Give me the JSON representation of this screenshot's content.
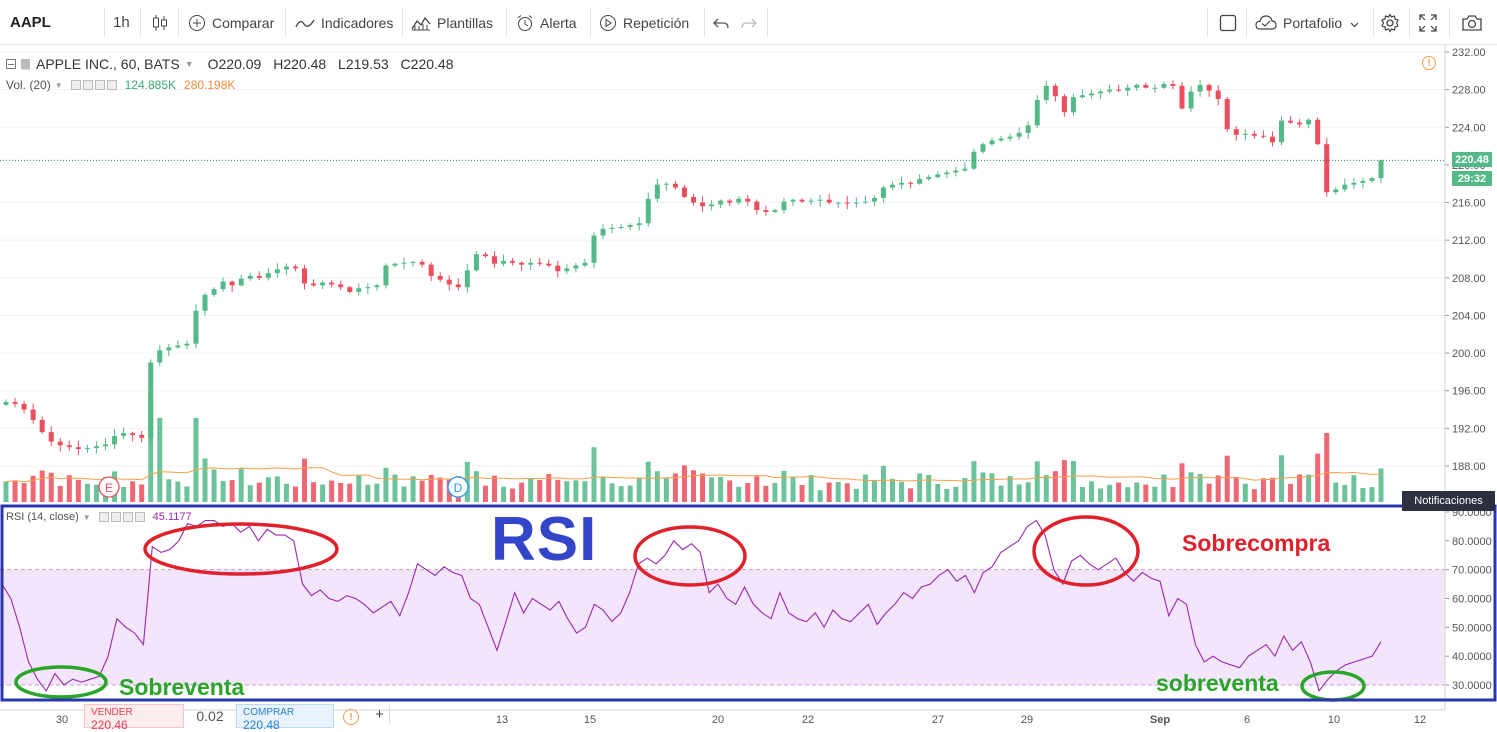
{
  "toolbar": {
    "symbol": "AAPL",
    "interval": "1h",
    "compare": "Comparar",
    "indicators": "Indicadores",
    "templates": "Plantillas",
    "alert": "Alerta",
    "replay": "Repetición",
    "portfolio": "Portafolio"
  },
  "legend": {
    "title": "APPLE INC., 60, BATS",
    "open": "O220.09",
    "high": "H220.48",
    "low": "L219.53",
    "close": "C220.48"
  },
  "volume_legend": {
    "label": "Vol. (20)",
    "value1": "124.885K",
    "value2": "280.198K"
  },
  "rsi_legend": {
    "label": "RSI (14, close)",
    "value": "45.1177"
  },
  "price_tag": {
    "price": "220.48",
    "countdown": "29:32"
  },
  "notifications": "Notificaciones",
  "markers": {
    "earnings": "E",
    "dividend": "D"
  },
  "annotations": {
    "rsi_title": "RSI",
    "overbought": "Sobrecompra",
    "oversold_left": "Sobreventa",
    "oversold_right": "sobreventa"
  },
  "trade": {
    "sell_label": "VENDER",
    "sell_price": "220.46",
    "spread": "0.02",
    "buy_label": "COMPRAR",
    "buy_price": "220.48"
  },
  "colors": {
    "up": "#53b987",
    "down": "#eb4d5c",
    "rsi_line": "#9c27b0",
    "rsi_band": "#f3e5fb",
    "annot_red": "#e0202a",
    "annot_green": "#2aa52a",
    "annot_blue": "#3346c9"
  },
  "chart_data": [
    {
      "type": "candlestick",
      "title": "APPLE INC., 60, BATS",
      "y_ticks": [
        "232.00",
        "228.00",
        "224.00",
        "220.00",
        "216.00",
        "212.00",
        "208.00",
        "204.00",
        "200.00",
        "196.00",
        "192.00",
        "188.00"
      ],
      "x_ticks": [
        "30",
        "13",
        "15",
        "20",
        "22",
        "27",
        "29",
        "Sep",
        "6",
        "10",
        "12"
      ],
      "ylim": [
        186,
        232.5
      ],
      "close_path": [
        194.8,
        194.6,
        194.0,
        192.9,
        191.6,
        190.6,
        190.2,
        190.0,
        189.8,
        189.9,
        190.1,
        190.3,
        191.2,
        191.5,
        191.3,
        191.0,
        199.0,
        200.3,
        200.6,
        200.8,
        201.0,
        204.5,
        206.2,
        206.8,
        207.6,
        207.2,
        207.9,
        208.2,
        208.0,
        208.5,
        208.9,
        209.2,
        209.0,
        207.4,
        207.2,
        207.5,
        207.3,
        207.0,
        206.5,
        206.9,
        207.0,
        207.2,
        209.3,
        209.5,
        209.6,
        209.7,
        209.4,
        208.2,
        207.8,
        207.3,
        207.0,
        208.8,
        210.5,
        210.3,
        209.5,
        209.8,
        209.6,
        209.4,
        209.6,
        209.5,
        209.3,
        208.7,
        209.0,
        209.3,
        209.6,
        212.5,
        213.2,
        213.3,
        213.4,
        213.6,
        213.8,
        216.4,
        217.9,
        218.0,
        217.6,
        216.6,
        216.0,
        215.6,
        215.8,
        216.2,
        216.0,
        216.4,
        216.1,
        215.2,
        215.0,
        215.2,
        216.1,
        216.3,
        216.1,
        216.2,
        216.3,
        216.0,
        216.0,
        215.9,
        216.0,
        216.1,
        216.5,
        217.6,
        217.9,
        218.1,
        218.0,
        218.5,
        218.7,
        219.0,
        219.2,
        219.4,
        219.6,
        221.4,
        222.2,
        222.6,
        222.8,
        223.0,
        223.4,
        224.2,
        226.9,
        228.4,
        227.3,
        225.6,
        227.2,
        227.4,
        227.6,
        227.8,
        228.0,
        227.9,
        228.2,
        228.5,
        228.2,
        228.2,
        228.6,
        228.4,
        226.0,
        227.8,
        228.5,
        227.9,
        227.0,
        223.8,
        223.2,
        223.3,
        223.1,
        223.0,
        222.4,
        224.7,
        224.5,
        224.3,
        224.8,
        222.2,
        217.1,
        217.4,
        217.9,
        218.1,
        218.3,
        218.6,
        220.48
      ],
      "volume_ylim": [
        0,
        130
      ]
    },
    {
      "type": "line",
      "title": "RSI (14, close)",
      "y_ticks": [
        "90.0000",
        "80.0000",
        "70.0000",
        "60.0000",
        "50.0000",
        "40.0000",
        "30.0000"
      ],
      "ylim": [
        25,
        91
      ],
      "reference_lines": [
        70,
        30
      ],
      "values": [
        65,
        60,
        50,
        38,
        32,
        28,
        34,
        30,
        32,
        31,
        32,
        33,
        40,
        53,
        50,
        48,
        44,
        78,
        76,
        77,
        80,
        86,
        85,
        87,
        87,
        85,
        86,
        83,
        85,
        80,
        84,
        82,
        82,
        80,
        65,
        61,
        63,
        60,
        59,
        61,
        60,
        58,
        55,
        57,
        59,
        54,
        62,
        72,
        70,
        68,
        71,
        69,
        68,
        60,
        58,
        50,
        42,
        52,
        62,
        55,
        60,
        58,
        56,
        59,
        53,
        48,
        50,
        58,
        56,
        52,
        55,
        62,
        72,
        74,
        72,
        75,
        80,
        77,
        79,
        76,
        62,
        65,
        60,
        58,
        64,
        58,
        55,
        53,
        62,
        55,
        53,
        52,
        55,
        50,
        56,
        53,
        52,
        55,
        58,
        51,
        55,
        58,
        62,
        60,
        64,
        65,
        68,
        70,
        66,
        68,
        62,
        69,
        71,
        76,
        78,
        80,
        85,
        87,
        82,
        70,
        65,
        73,
        75,
        72,
        70,
        72,
        74,
        69,
        66,
        69,
        67,
        66,
        54,
        60,
        58,
        44,
        38,
        40,
        38,
        37,
        36,
        40,
        42,
        44,
        40,
        47,
        42,
        45,
        38,
        28,
        32,
        35,
        37,
        38,
        39,
        40,
        45
      ]
    }
  ]
}
